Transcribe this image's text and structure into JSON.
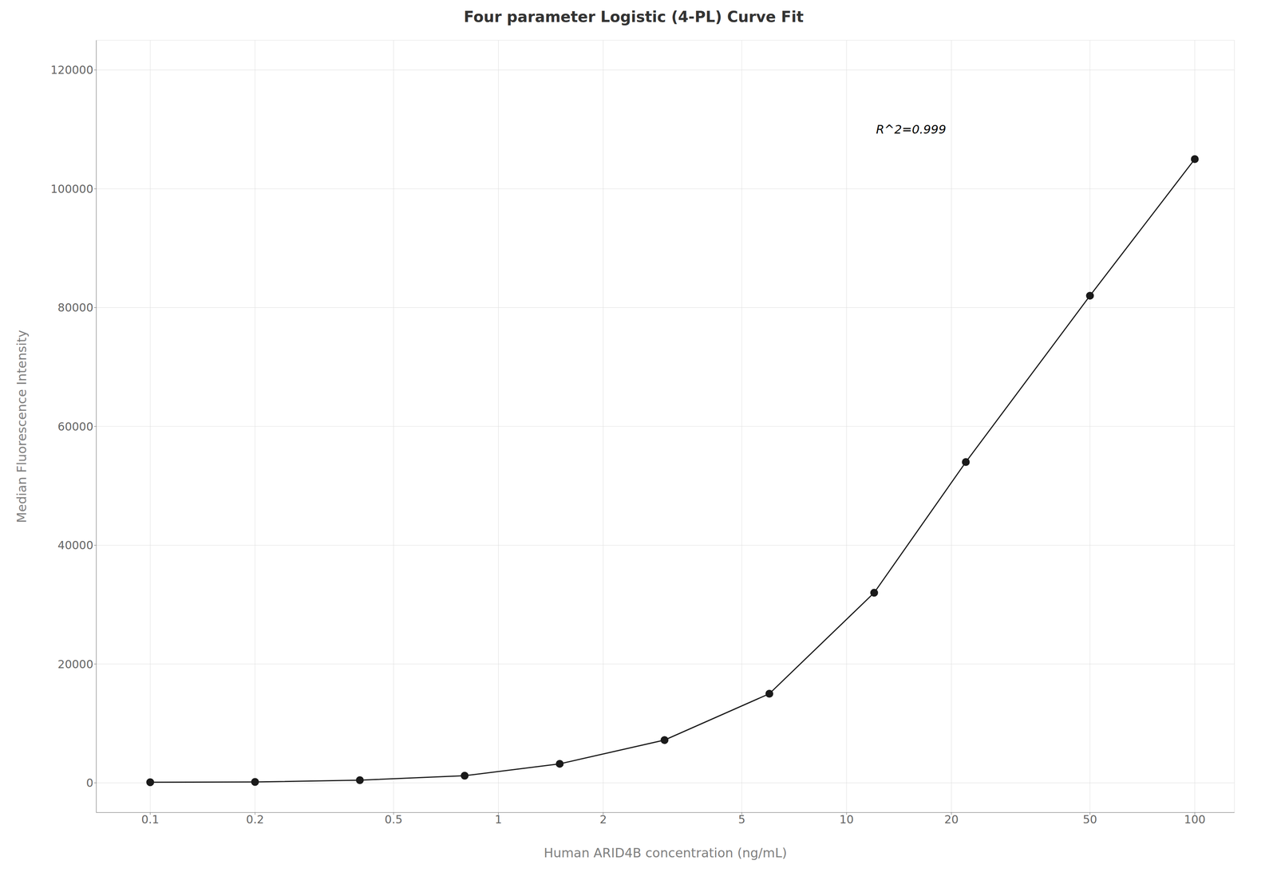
{
  "chart_data": {
    "type": "line",
    "title": "Four parameter Logistic (4-PL) Curve Fit",
    "x_label": "Human ARID4B concentration (ng/mL)",
    "y_label": "Median Fluorescence Intensity",
    "x": [
      0.1,
      0.2,
      0.4,
      0.8,
      1.5,
      3.0,
      6.0,
      12.0,
      22.0,
      50.0,
      100.0
    ],
    "values": [
      100,
      150,
      450,
      1200,
      3200,
      7200,
      15000,
      32000,
      54000,
      82000,
      105000
    ],
    "color": "#1a1a1a",
    "marker": "circle",
    "log": "x",
    "xlim": [
      0.07,
      130
    ],
    "xticks": [
      0.1,
      0.2,
      0.5,
      1,
      2,
      5,
      10,
      20,
      50,
      100
    ],
    "ylim": [
      -5000,
      125000
    ],
    "yticks": [
      0,
      20000,
      40000,
      60000,
      80000,
      100000,
      120000
    ],
    "grid": true,
    "annotations": [
      {
        "text": "R^2=0.999",
        "x": 12,
        "y": 110000
      }
    ]
  }
}
